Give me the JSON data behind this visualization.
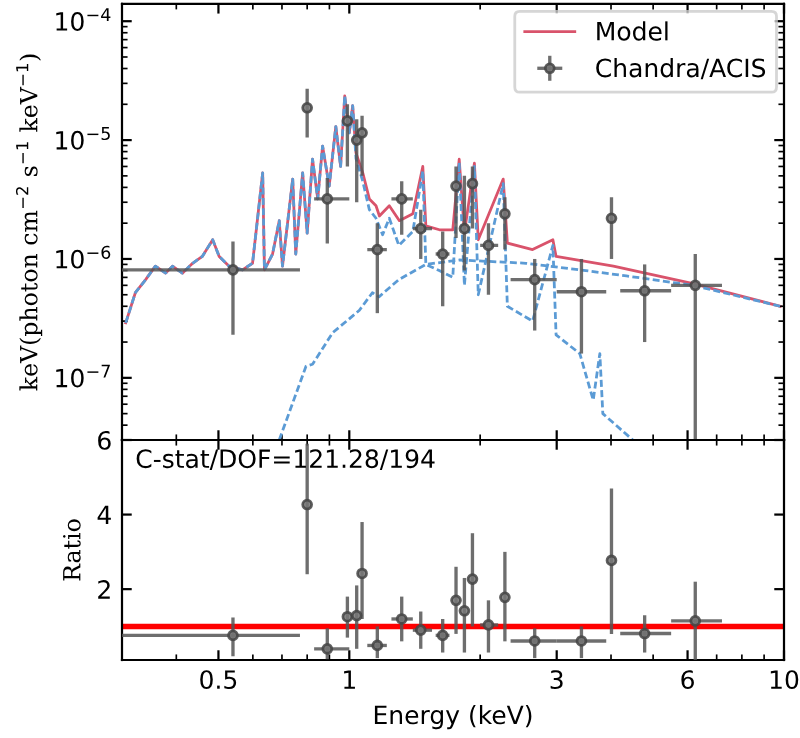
{
  "chart_data": [
    {
      "type": "scatter",
      "ylabel": "keV(photon cm$^{−2}$ s$^{−1}$ keV$^{−1}$)",
      "log": "xy",
      "xlim": [
        0.3,
        10
      ],
      "ylim": [
        3e-08,
        0.00014
      ],
      "xticks": [
        0.5,
        1,
        3,
        6,
        10
      ],
      "yticks": [
        {
          "value": 1e-07,
          "label": "10$^{−7}$"
        },
        {
          "value": 1e-06,
          "label": "10$^{−6}$"
        },
        {
          "value": 1e-05,
          "label": "10$^{−5}$"
        },
        {
          "value": 0.0001,
          "label": "10$^{−4}$"
        }
      ],
      "tick_labels": "y",
      "legend": "top right",
      "grid": false,
      "series": [
        {
          "type": "line",
          "color": "#5b9bd5",
          "line_style": "dashed",
          "marker": "none",
          "x": [
            0.306,
            0.322,
            0.34,
            0.358,
            0.378,
            0.392,
            0.413,
            0.436,
            0.459,
            0.485,
            0.502,
            0.529,
            0.568,
            0.599,
            0.632,
            0.638,
            0.666,
            0.69,
            0.702,
            0.741,
            0.753,
            0.781,
            0.8,
            0.823,
            0.846,
            0.868,
            0.899,
            0.931,
            0.955,
            0.976,
            1.0,
            1.018,
            1.036,
            1.074,
            1.112,
            1.152,
            1.193,
            1.236,
            1.3,
            1.4,
            1.476,
            1.5,
            1.61,
            1.73,
            1.79,
            1.84,
            1.94,
            1.98,
            2.26,
            2.31,
            2.64,
            2.94,
            2.99,
            3.39,
            3.64,
            3.77,
            3.83,
            4.49
          ],
          "values": [
            2.9e-07,
            5.2e-07,
            6.7e-07,
            8.7e-07,
            7.6e-07,
            8.7e-07,
            7.6e-07,
            9.2e-07,
            1.05e-06,
            1.45e-06,
            1.05e-06,
            8.7e-07,
            8.1e-07,
            9.2e-07,
            5.3e-06,
            8.1e-07,
            1.1e-06,
            2.1e-06,
            8.7e-07,
            4.7e-06,
            1.1e-06,
            5.3e-06,
            1.65e-06,
            6.9e-06,
            3.2e-06,
            8.9e-06,
            4.1e-06,
            1.3e-05,
            6e-06,
            2.35e-05,
            1.15e-05,
            1.95e-05,
            7e-06,
            4.5e-06,
            2.6e-06,
            2.2e-06,
            1.6e-06,
            2.2e-06,
            1.3e-06,
            1.7e-06,
            5.5e-06,
            9e-07,
            8e-07,
            7e-07,
            6.5e-06,
            6e-07,
            6e-06,
            5e-07,
            4.3e-06,
            4e-07,
            3e-07,
            1.3e-06,
            2.3e-07,
            1.6e-07,
            6.5e-08,
            1.6e-07,
            5e-08,
            3e-08
          ]
        },
        {
          "type": "line",
          "color": "#5b9bd5",
          "line_style": "dashed",
          "marker": "none",
          "x": [
            0.69,
            0.795,
            0.823,
            0.916,
            1.055,
            1.13,
            1.17,
            1.3,
            1.5,
            1.79,
            2.14,
            2.55,
            3.39,
            4.34,
            6.18,
            9.8
          ],
          "values": [
            3e-08,
            1.25e-07,
            1.3e-07,
            2.4e-07,
            3.7e-07,
            5.2e-07,
            4.8e-07,
            6.7e-07,
            9e-07,
            9.8e-07,
            9.5e-07,
            9.2e-07,
            8.1e-07,
            7.2e-07,
            6e-07,
            4e-07
          ]
        },
        {
          "type": "line",
          "name": "Model",
          "color": "#d9536b",
          "line_style": "solid",
          "marker": "none",
          "x": [
            0.306,
            0.322,
            0.34,
            0.358,
            0.378,
            0.392,
            0.413,
            0.436,
            0.459,
            0.485,
            0.502,
            0.529,
            0.568,
            0.599,
            0.632,
            0.638,
            0.666,
            0.69,
            0.702,
            0.741,
            0.753,
            0.781,
            0.8,
            0.823,
            0.846,
            0.868,
            0.899,
            0.931,
            0.955,
            0.976,
            1.0,
            1.018,
            1.036,
            1.074,
            1.112,
            1.152,
            1.173,
            1.236,
            1.304,
            1.4,
            1.476,
            1.5,
            1.612,
            1.73,
            1.79,
            1.84,
            1.94,
            1.98,
            2.26,
            2.31,
            2.64,
            2.94,
            2.99,
            4.05,
            6.18,
            9.8
          ],
          "values": [
            2.9e-07,
            5.2e-07,
            6.7e-07,
            8.7e-07,
            7.6e-07,
            8.7e-07,
            7.6e-07,
            9.2e-07,
            1.05e-06,
            1.45e-06,
            1.05e-06,
            8.7e-07,
            8.1e-07,
            9.2e-07,
            5.3e-06,
            8.1e-07,
            1.1e-06,
            2.1e-06,
            8.7e-07,
            4.7e-06,
            1.1e-06,
            5.3e-06,
            1.65e-06,
            6.9e-06,
            3.2e-06,
            8.9e-06,
            4.1e-06,
            1.3e-05,
            6e-06,
            2.35e-05,
            1.15e-05,
            1.95e-05,
            7.8e-06,
            5.3e-06,
            3.2e-06,
            2.8e-06,
            2.3e-06,
            2.8e-06,
            2.1e-06,
            2.4e-06,
            6e-06,
            1.9e-06,
            1.76e-06,
            1.76e-06,
            6.9e-06,
            1.65e-06,
            6.4e-06,
            1.45e-06,
            4.7e-06,
            1.36e-06,
            1.2e-06,
            1.45e-06,
            1.05e-06,
            8.7e-07,
            6.2e-07,
            4e-07
          ]
        },
        {
          "name": "Chandra/ACIS",
          "color": "#555555",
          "marker": "circle",
          "x": [
            0.54,
            0.8,
            0.89,
            0.99,
            1.04,
            1.07,
            1.16,
            1.32,
            1.46,
            1.64,
            1.76,
            1.84,
            1.92,
            2.09,
            2.28,
            2.67,
            3.42,
            4.01,
            4.78,
            6.25
          ],
          "values": [
            8.1e-07,
            1.87e-05,
            3.2e-06,
            1.45e-05,
            1e-05,
            1.15e-05,
            1.2e-06,
            3.2e-06,
            1.8e-06,
            1.1e-06,
            4.1e-06,
            1.8e-06,
            4.3e-06,
            1.3e-06,
            2.4e-06,
            6.7e-07,
            5.3e-07,
            2.2e-06,
            5.4e-07,
            6e-07
          ],
          "errors": [
            [
              2.3e-07,
              1.4e-06
            ],
            [
              1.05e-05,
              2.7e-05
            ],
            [
              1.35e-06,
              4.8e-06
            ],
            [
              6e-06,
              2e-05
            ],
            [
              3e-06,
              1.5e-05
            ],
            [
              5e-06,
              1.6e-05
            ],
            [
              3.5e-07,
              2e-06
            ],
            [
              1.6e-06,
              4.5e-06
            ],
            [
              1e-06,
              2.6e-06
            ],
            [
              4e-07,
              1.7e-06
            ],
            [
              1.5e-06,
              6e-06
            ],
            [
              8e-07,
              5e-06
            ],
            [
              1.8e-06,
              6e-06
            ],
            [
              5e-07,
              2e-06
            ],
            [
              1.2e-06,
              3.3e-06
            ],
            [
              2.5e-07,
              1e-06
            ],
            [
              1.6e-07,
              1e-06
            ],
            [
              1e-06,
              3.3e-06
            ],
            [
              2e-07,
              9e-07
            ],
            [
              3e-08,
              1.1e-06
            ]
          ],
          "xerrors": [
            [
              0.3,
              0.77
            ],
            null,
            [
              0.83,
              1.0
            ],
            null,
            null,
            null,
            [
              1.1,
              1.22
            ],
            [
              1.25,
              1.4
            ],
            [
              1.4,
              1.55
            ],
            [
              1.58,
              1.7
            ],
            null,
            null,
            null,
            [
              2.0,
              2.2
            ],
            null,
            [
              2.35,
              3.0
            ],
            [
              3.0,
              3.9
            ],
            null,
            [
              4.2,
              5.5
            ],
            [
              5.5,
              7.2
            ]
          ]
        }
      ]
    },
    {
      "type": "scatter",
      "xlabel": "Energy (keV)",
      "ylabel": "Ratio",
      "log": "x",
      "xlim": [
        0.3,
        10
      ],
      "ylim": [
        0.1,
        6
      ],
      "xticks": [
        0.5,
        1,
        3,
        6,
        10
      ],
      "yticks": [
        2,
        4,
        6
      ],
      "grid": false,
      "annotations": [
        "C-stat/DOF=121.28/194"
      ],
      "ref_lines": [
        {
          "axis": "y",
          "value": 1,
          "color": "#ff0000",
          "line_style": "solid"
        }
      ],
      "series": [
        {
          "color": "#555555",
          "marker": "circle",
          "x": [
            0.54,
            0.8,
            0.89,
            0.99,
            1.04,
            1.07,
            1.16,
            1.32,
            1.46,
            1.64,
            1.76,
            1.84,
            1.92,
            2.09,
            2.28,
            2.67,
            3.42,
            4.01,
            4.78,
            6.25
          ],
          "values": [
            0.76,
            4.27,
            0.4,
            1.26,
            1.29,
            2.42,
            0.49,
            1.2,
            0.9,
            0.76,
            1.7,
            1.42,
            2.27,
            1.04,
            1.78,
            0.61,
            0.61,
            2.77,
            0.81,
            1.15
          ],
          "errors": [
            [
              0.2,
              1.24
            ],
            [
              2.4,
              5.9
            ],
            [
              0.12,
              0.95
            ],
            [
              0.7,
              1.8
            ],
            [
              0.4,
              2.1
            ],
            [
              1.2,
              3.8
            ],
            [
              0.15,
              1.0
            ],
            [
              0.6,
              1.8
            ],
            [
              0.4,
              1.4
            ],
            [
              0.3,
              1.2
            ],
            [
              0.8,
              2.6
            ],
            [
              0.3,
              2.3
            ],
            [
              1.0,
              3.5
            ],
            [
              0.3,
              1.7
            ],
            [
              0.6,
              3.0
            ],
            [
              0.15,
              0.95
            ],
            [
              0.15,
              1.0
            ],
            [
              0.8,
              4.7
            ],
            [
              0.3,
              1.3
            ],
            [
              0.1,
              2.2
            ]
          ],
          "xerrors": [
            [
              0.3,
              0.77
            ],
            null,
            [
              0.83,
              1.0
            ],
            null,
            null,
            null,
            [
              1.1,
              1.22
            ],
            [
              1.25,
              1.4
            ],
            [
              1.4,
              1.55
            ],
            [
              1.58,
              1.7
            ],
            null,
            null,
            null,
            [
              2.0,
              2.2
            ],
            null,
            [
              2.35,
              3.0
            ],
            [
              3.0,
              3.9
            ],
            null,
            [
              4.2,
              5.5
            ],
            [
              5.5,
              7.2
            ]
          ]
        }
      ]
    }
  ]
}
